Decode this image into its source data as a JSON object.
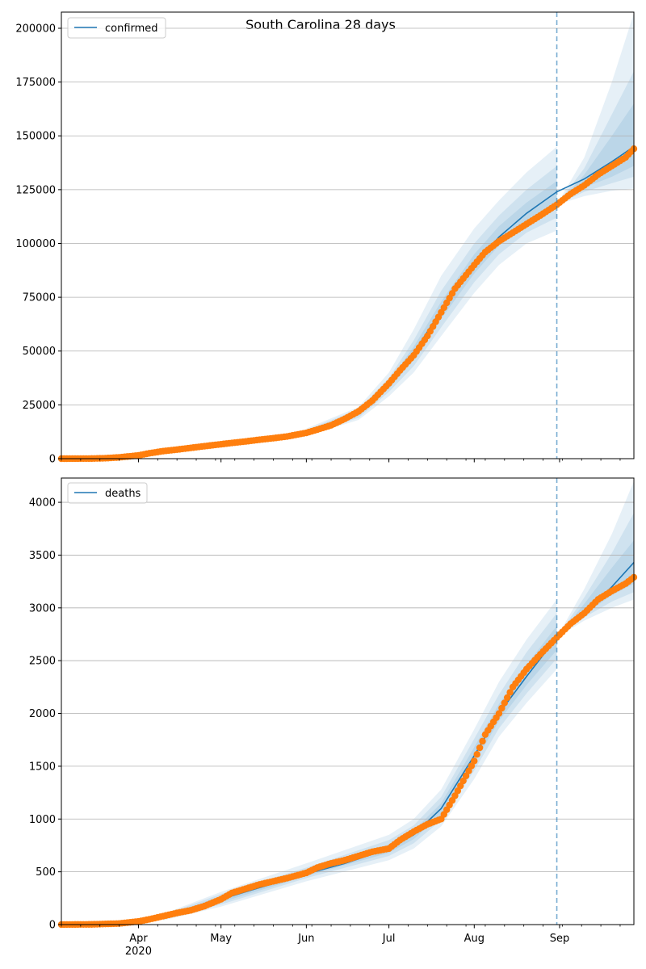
{
  "title": "South Carolina 28 days",
  "colors": {
    "model": "#1f77b4",
    "observed": "#ff7f0e",
    "band": "#1f77b4",
    "forecast_line": "#1f77b4",
    "grid": "#b0b0b0"
  },
  "x_ticks": [
    {
      "label": "Apr",
      "date": "2020-04-01",
      "sub": "2020"
    },
    {
      "label": "May",
      "date": "2020-05-01",
      "sub": ""
    },
    {
      "label": "Jun",
      "date": "2020-06-01",
      "sub": ""
    },
    {
      "label": "Jul",
      "date": "2020-07-01",
      "sub": ""
    },
    {
      "label": "Aug",
      "date": "2020-08-01",
      "sub": ""
    },
    {
      "label": "Sep",
      "date": "2020-09-01",
      "sub": ""
    }
  ],
  "chart_data": [
    {
      "type": "line",
      "legend": "confirmed",
      "legend_position": "top-left",
      "grid": "horizontal",
      "xlim": [
        "2020-03-04",
        "2020-09-28"
      ],
      "ylim": [
        0,
        207500
      ],
      "y_ticks": [
        0,
        25000,
        50000,
        75000,
        100000,
        125000,
        150000,
        175000,
        200000
      ],
      "forecast_start": "2020-08-31",
      "model": {
        "dates": [
          "2020-03-04",
          "2020-03-15",
          "2020-03-25",
          "2020-04-01",
          "2020-04-15",
          "2020-05-01",
          "2020-05-15",
          "2020-06-01",
          "2020-06-10",
          "2020-06-20",
          "2020-07-01",
          "2020-07-10",
          "2020-07-20",
          "2020-08-01",
          "2020-08-10",
          "2020-08-20",
          "2020-08-31",
          "2020-09-10",
          "2020-09-20",
          "2020-09-28"
        ],
        "values": [
          0,
          200,
          800,
          1800,
          4500,
          7000,
          9000,
          12000,
          15000,
          21000,
          34000,
          49000,
          69000,
          90000,
          103000,
          114000,
          124000,
          130000,
          138000,
          145000
        ]
      },
      "bands": [
        {
          "dates": [
            "2020-06-01",
            "2020-06-20",
            "2020-07-01",
            "2020-07-10",
            "2020-07-20",
            "2020-08-01",
            "2020-08-10",
            "2020-08-20",
            "2020-08-31"
          ],
          "lower": [
            10500,
            18000,
            29000,
            40000,
            57000,
            77000,
            90000,
            100000,
            106000
          ],
          "upper": [
            14000,
            24000,
            40000,
            60000,
            85000,
            107000,
            120000,
            133000,
            145000
          ]
        },
        {
          "dates": [
            "2020-06-01",
            "2020-06-20",
            "2020-07-01",
            "2020-07-10",
            "2020-07-20",
            "2020-08-01",
            "2020-08-10",
            "2020-08-20",
            "2020-08-31"
          ],
          "lower": [
            11000,
            19000,
            31000,
            43000,
            61000,
            82000,
            95000,
            105000,
            112000
          ],
          "upper": [
            13300,
            23000,
            37500,
            55000,
            78000,
            100000,
            113000,
            125000,
            136000
          ]
        },
        {
          "dates": [
            "2020-06-01",
            "2020-06-20",
            "2020-07-01",
            "2020-07-10",
            "2020-07-20",
            "2020-08-01",
            "2020-08-10",
            "2020-08-20",
            "2020-08-31"
          ],
          "lower": [
            11500,
            20000,
            32500,
            46000,
            65000,
            86000,
            99000,
            109000,
            118000
          ],
          "upper": [
            12700,
            22000,
            36000,
            52000,
            73000,
            95000,
            108000,
            119000,
            129000
          ]
        },
        {
          "dates": [
            "2020-08-31",
            "2020-09-10",
            "2020-09-20",
            "2020-09-28"
          ],
          "lower": [
            118000,
            122000,
            124500,
            125500
          ],
          "upper": [
            118000,
            140000,
            175000,
            207000
          ]
        },
        {
          "dates": [
            "2020-08-31",
            "2020-09-10",
            "2020-09-20",
            "2020-09-28"
          ],
          "lower": [
            118000,
            124000,
            128000,
            131000
          ],
          "upper": [
            118000,
            135000,
            160000,
            180000
          ]
        },
        {
          "dates": [
            "2020-08-31",
            "2020-09-10",
            "2020-09-20",
            "2020-09-28"
          ],
          "lower": [
            118000,
            126000,
            131000,
            136000
          ],
          "upper": [
            118000,
            132000,
            150000,
            165000
          ]
        }
      ],
      "observed": {
        "dates": [
          "2020-03-04",
          "2020-03-10",
          "2020-03-15",
          "2020-03-20",
          "2020-03-25",
          "2020-04-01",
          "2020-04-05",
          "2020-04-10",
          "2020-04-15",
          "2020-04-20",
          "2020-04-25",
          "2020-05-01",
          "2020-05-05",
          "2020-05-10",
          "2020-05-15",
          "2020-05-20",
          "2020-05-25",
          "2020-06-01",
          "2020-06-05",
          "2020-06-10",
          "2020-06-15",
          "2020-06-20",
          "2020-06-25",
          "2020-07-01",
          "2020-07-05",
          "2020-07-10",
          "2020-07-15",
          "2020-07-20",
          "2020-07-25",
          "2020-08-01",
          "2020-08-05",
          "2020-08-10",
          "2020-08-15",
          "2020-08-20",
          "2020-08-25",
          "2020-08-31",
          "2020-09-05",
          "2020-09-10",
          "2020-09-15",
          "2020-09-20",
          "2020-09-25",
          "2020-09-28"
        ],
        "values": [
          0,
          10,
          50,
          200,
          600,
          1500,
          2500,
          3500,
          4200,
          5000,
          5800,
          6700,
          7300,
          8000,
          8800,
          9500,
          10300,
          12000,
          13500,
          15500,
          18500,
          22000,
          27000,
          35000,
          41000,
          48000,
          57000,
          68000,
          79000,
          90000,
          96000,
          101000,
          105000,
          109000,
          113000,
          118000,
          123000,
          127000,
          132000,
          136000,
          140000,
          144000
        ]
      }
    },
    {
      "type": "line",
      "legend": "deaths",
      "legend_position": "top-left",
      "grid": "horizontal",
      "xlim": [
        "2020-03-04",
        "2020-09-28"
      ],
      "ylim": [
        0,
        4230
      ],
      "y_ticks": [
        0,
        500,
        1000,
        1500,
        2000,
        2500,
        3000,
        3500,
        4000
      ],
      "forecast_start": "2020-08-31",
      "model": {
        "dates": [
          "2020-03-04",
          "2020-03-20",
          "2020-04-01",
          "2020-04-15",
          "2020-05-01",
          "2020-05-15",
          "2020-06-01",
          "2020-06-15",
          "2020-07-01",
          "2020-07-10",
          "2020-07-20",
          "2020-08-01",
          "2020-08-10",
          "2020-08-20",
          "2020-08-31",
          "2020-09-10",
          "2020-09-20",
          "2020-09-28"
        ],
        "values": [
          0,
          5,
          30,
          100,
          240,
          350,
          480,
          580,
          720,
          850,
          1100,
          1600,
          2000,
          2350,
          2720,
          2950,
          3200,
          3430
        ]
      },
      "bands": [
        {
          "dates": [
            "2020-04-10",
            "2020-05-01",
            "2020-06-01",
            "2020-07-01",
            "2020-07-10",
            "2020-07-20",
            "2020-08-01",
            "2020-08-10",
            "2020-08-20",
            "2020-08-31"
          ],
          "lower": [
            40,
            170,
            410,
            610,
            720,
            930,
            1380,
            1780,
            2100,
            2420
          ],
          "upper": [
            100,
            310,
            580,
            850,
            1000,
            1280,
            1850,
            2300,
            2700,
            3080
          ]
        },
        {
          "dates": [
            "2020-04-10",
            "2020-05-01",
            "2020-06-01",
            "2020-07-01",
            "2020-07-10",
            "2020-07-20",
            "2020-08-01",
            "2020-08-10",
            "2020-08-20",
            "2020-08-31"
          ],
          "lower": [
            50,
            190,
            440,
            650,
            770,
            990,
            1460,
            1860,
            2190,
            2520
          ],
          "upper": [
            90,
            290,
            540,
            800,
            940,
            1210,
            1760,
            2180,
            2580,
            2950
          ]
        },
        {
          "dates": [
            "2020-04-10",
            "2020-05-01",
            "2020-06-01",
            "2020-07-01",
            "2020-07-10",
            "2020-07-20",
            "2020-08-01",
            "2020-08-10",
            "2020-08-20",
            "2020-08-31"
          ],
          "lower": [
            60,
            210,
            460,
            680,
            810,
            1040,
            1530,
            1930,
            2270,
            2600
          ],
          "upper": [
            80,
            270,
            510,
            760,
            890,
            1150,
            1680,
            2090,
            2460,
            2830
          ]
        },
        {
          "dates": [
            "2020-08-31",
            "2020-09-10",
            "2020-09-20",
            "2020-09-28"
          ],
          "lower": [
            2720,
            2880,
            3000,
            3080
          ],
          "upper": [
            2720,
            3180,
            3700,
            4200
          ]
        },
        {
          "dates": [
            "2020-08-31",
            "2020-09-10",
            "2020-09-20",
            "2020-09-28"
          ],
          "lower": [
            2720,
            2910,
            3060,
            3150
          ],
          "upper": [
            2720,
            3100,
            3520,
            3900
          ]
        },
        {
          "dates": [
            "2020-08-31",
            "2020-09-10",
            "2020-09-20",
            "2020-09-28"
          ],
          "lower": [
            2720,
            2940,
            3120,
            3230
          ],
          "upper": [
            2720,
            3040,
            3380,
            3640
          ]
        }
      ],
      "observed": {
        "dates": [
          "2020-03-04",
          "2020-03-15",
          "2020-03-25",
          "2020-04-01",
          "2020-04-05",
          "2020-04-10",
          "2020-04-15",
          "2020-04-20",
          "2020-04-25",
          "2020-05-01",
          "2020-05-05",
          "2020-05-10",
          "2020-05-15",
          "2020-05-20",
          "2020-05-25",
          "2020-06-01",
          "2020-06-05",
          "2020-06-10",
          "2020-06-15",
          "2020-06-20",
          "2020-06-25",
          "2020-07-01",
          "2020-07-05",
          "2020-07-10",
          "2020-07-15",
          "2020-07-20",
          "2020-07-25",
          "2020-08-01",
          "2020-08-05",
          "2020-08-10",
          "2020-08-15",
          "2020-08-20",
          "2020-08-25",
          "2020-08-31",
          "2020-09-05",
          "2020-09-10",
          "2020-09-15",
          "2020-09-20",
          "2020-09-25",
          "2020-09-28"
        ],
        "values": [
          0,
          2,
          10,
          30,
          50,
          80,
          110,
          135,
          175,
          240,
          300,
          340,
          380,
          410,
          440,
          490,
          540,
          580,
          610,
          650,
          690,
          720,
          800,
          880,
          950,
          1000,
          1220,
          1550,
          1800,
          2000,
          2250,
          2420,
          2560,
          2720,
          2850,
          2950,
          3080,
          3160,
          3230,
          3290
        ]
      }
    }
  ]
}
